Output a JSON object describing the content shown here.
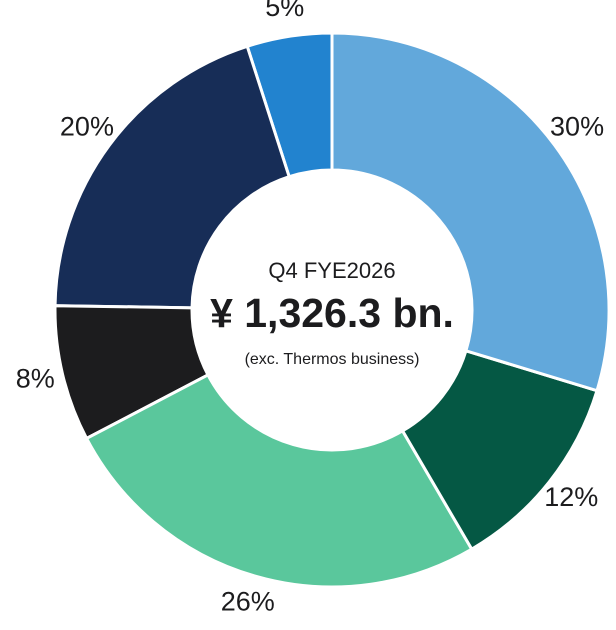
{
  "chart_data": {
    "type": "pie",
    "values": [
      30,
      12,
      26,
      8,
      20,
      5
    ],
    "value_labels": [
      "30%",
      "12%",
      "26%",
      "8%",
      "20%",
      "5%"
    ],
    "colors": [
      "#62a8db",
      "#055844",
      "#5ac79c",
      "#1c1c1e",
      "#172d57",
      "#2283cf"
    ],
    "center_title": "Q4 FYE2026",
    "center_value": "¥ 1,326.3 bn.",
    "center_note": "(exc. Thermos business)"
  }
}
